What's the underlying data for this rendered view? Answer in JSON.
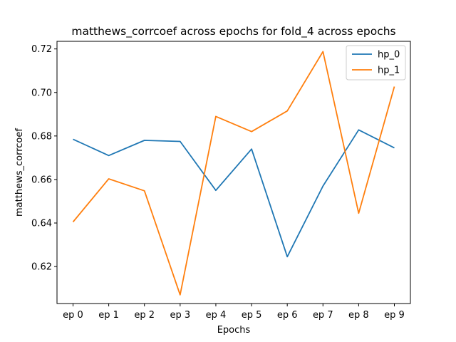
{
  "chart_data": {
    "type": "line",
    "title": "matthews_corrcoef across epochs for fold_4 across epochs",
    "xlabel": "Epochs",
    "ylabel": "matthews_corrcoef",
    "categories": [
      "ep 0",
      "ep 1",
      "ep 2",
      "ep 3",
      "ep 4",
      "ep 5",
      "ep 6",
      "ep 7",
      "ep 8",
      "ep 9"
    ],
    "ylim": [
      0.603,
      0.7235
    ],
    "yticks": [
      "0.62",
      "0.64",
      "0.66",
      "0.68",
      "0.70",
      "0.72"
    ],
    "ytick_values": [
      0.62,
      0.64,
      0.66,
      0.68,
      0.7,
      0.72
    ],
    "grid": false,
    "legend_position": "top-right",
    "series": [
      {
        "name": "hp_0",
        "color": "#1f77b4",
        "values": [
          0.6785,
          0.671,
          0.678,
          0.6775,
          0.655,
          0.674,
          0.6245,
          0.657,
          0.6828,
          0.6745
        ]
      },
      {
        "name": "hp_1",
        "color": "#ff7f0e",
        "values": [
          0.6405,
          0.6603,
          0.6548,
          0.607,
          0.689,
          0.682,
          0.6915,
          0.7188,
          0.6445,
          0.7027
        ]
      }
    ]
  }
}
